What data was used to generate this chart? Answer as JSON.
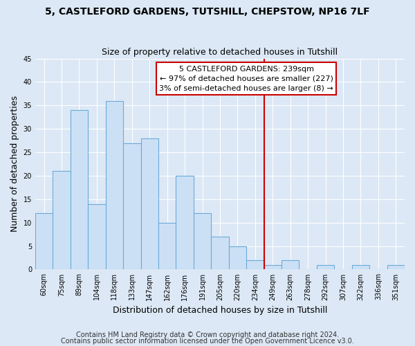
{
  "title1": "5, CASTLEFORD GARDENS, TUTSHILL, CHEPSTOW, NP16 7LF",
  "title2": "Size of property relative to detached houses in Tutshill",
  "xlabel": "Distribution of detached houses by size in Tutshill",
  "ylabel": "Number of detached properties",
  "bin_labels": [
    "60sqm",
    "75sqm",
    "89sqm",
    "104sqm",
    "118sqm",
    "133sqm",
    "147sqm",
    "162sqm",
    "176sqm",
    "191sqm",
    "205sqm",
    "220sqm",
    "234sqm",
    "249sqm",
    "263sqm",
    "278sqm",
    "292sqm",
    "307sqm",
    "322sqm",
    "336sqm",
    "351sqm"
  ],
  "bar_values": [
    12,
    21,
    34,
    14,
    36,
    27,
    28,
    10,
    20,
    12,
    7,
    5,
    2,
    1,
    2,
    0,
    1,
    0,
    1,
    0,
    1
  ],
  "bar_color": "#cce0f5",
  "bar_edge_color": "#6aabda",
  "vline_color": "#cc0000",
  "vline_x_index": 12,
  "annotation_title": "5 CASTLEFORD GARDENS: 239sqm",
  "annotation_line1": "← 97% of detached houses are smaller (227)",
  "annotation_line2": "3% of semi-detached houses are larger (8) →",
  "ylim": [
    0,
    45
  ],
  "yticks": [
    0,
    5,
    10,
    15,
    20,
    25,
    30,
    35,
    40,
    45
  ],
  "footnote1": "Contains HM Land Registry data © Crown copyright and database right 2024.",
  "footnote2": "Contains public sector information licensed under the Open Government Licence v3.0.",
  "background_color": "#dce8f5",
  "plot_bg_color": "#dce8f5",
  "grid_color": "#ffffff",
  "title_fontsize": 10,
  "subtitle_fontsize": 9,
  "axis_label_fontsize": 9,
  "tick_fontsize": 7,
  "annotation_fontsize": 8,
  "footnote_fontsize": 7
}
